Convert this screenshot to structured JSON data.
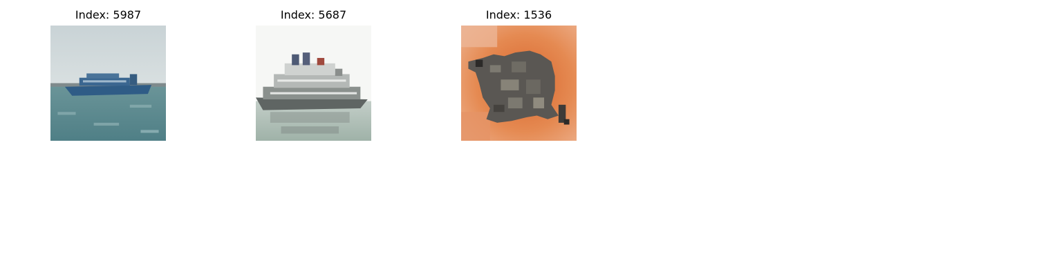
{
  "panels": [
    {
      "title": "Index: 5987",
      "subject": "ferry-boat",
      "colors": {
        "sky": "#c2d0d3",
        "water": "#5f8d92",
        "hull": "#2f5c86"
      }
    },
    {
      "title": "Index: 5687",
      "subject": "cruise-ship",
      "colors": {
        "sky": "#f7f8f6",
        "water": "#aab9b0",
        "hull": "#6e7472"
      }
    },
    {
      "title": "Index: 1536",
      "subject": "frog",
      "colors": {
        "background": "#e07a40",
        "body": "#5a5753"
      }
    }
  ]
}
